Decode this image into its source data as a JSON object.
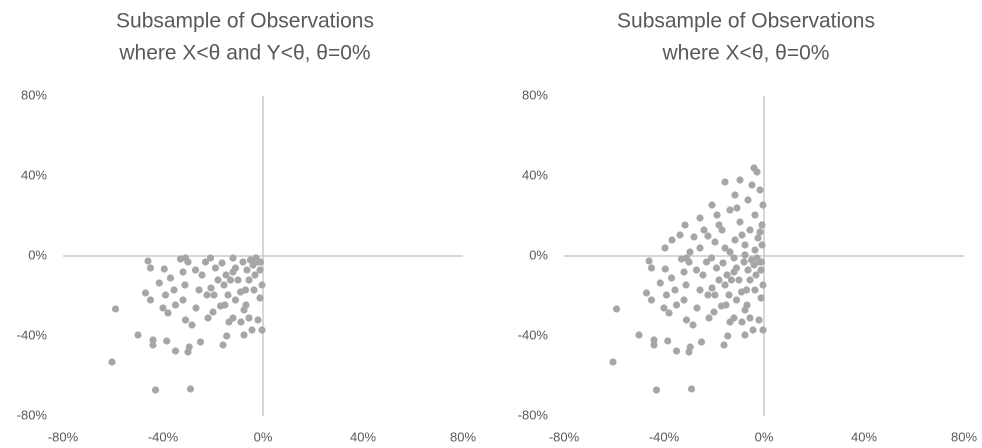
{
  "chart_data": [
    {
      "type": "scatter",
      "title": [
        "Subsample of Observations",
        "where X<θ and Y<θ, θ=0%"
      ],
      "color": "#a6a6a6",
      "xlim": [
        -80,
        80
      ],
      "ylim": [
        -80,
        80
      ],
      "xticks": [
        {
          "value": -80,
          "label": "-80%"
        },
        {
          "value": -40,
          "label": "-40%"
        },
        {
          "value": 0,
          "label": "0%"
        },
        {
          "value": 40,
          "label": "40%"
        },
        {
          "value": 80,
          "label": "80%"
        }
      ],
      "yticks": [
        {
          "value": -80,
          "label": "-80%"
        },
        {
          "value": -40,
          "label": "-40%"
        },
        {
          "value": 0,
          "label": "0%"
        },
        {
          "value": 40,
          "label": "40%"
        },
        {
          "value": 80,
          "label": "80%"
        }
      ],
      "x": [
        -60.4,
        -59,
        -43,
        -29,
        -46,
        -45,
        -47,
        -45,
        -50,
        -44,
        -44,
        -38.5,
        -35,
        -30,
        -29.5,
        -25,
        -16,
        -14.5,
        -38,
        -39,
        -41.5,
        -37,
        -39.5,
        -33,
        -31,
        -30,
        -32,
        -31.2,
        -32,
        -35,
        -31,
        -28.4,
        -26.8,
        -25.6,
        -24.4,
        -23,
        -21,
        -19,
        -18,
        -19.6,
        -17,
        -22,
        -13.6,
        -12,
        -11,
        -9,
        -10,
        -11,
        -12,
        -8,
        -6.4,
        -5,
        -4,
        -2.8,
        -2,
        -1.2,
        -0.4,
        -1.2,
        -2,
        -0.4,
        -4.4,
        -5.6,
        -6.8,
        -7.6,
        -8.8,
        -15.2,
        -14,
        -15.6,
        -14.8,
        -16.4,
        -13,
        -20.8,
        -22.4,
        -27,
        -35.6,
        -40,
        -12,
        -5.6,
        -3.6,
        -7,
        -3.2,
        -1,
        -20,
        -7.6
      ],
      "y": [
        -53,
        -26.5,
        -67,
        -66.5,
        -2.5,
        -6,
        -18.5,
        -22,
        -39.5,
        -42,
        -44.5,
        -42.5,
        -47.5,
        -48,
        -45.5,
        -43,
        -44.5,
        -40,
        -28.5,
        -19.5,
        -13.5,
        -11,
        -6.5,
        -1.5,
        -1,
        -3,
        -8,
        -14.5,
        -22,
        -24.5,
        -32,
        -34.5,
        -26,
        -17,
        -9.5,
        -3,
        -1,
        -6,
        -12,
        -19.5,
        -25,
        -31,
        -33,
        -31,
        -22,
        -18,
        -12,
        -6,
        -1,
        -3,
        -7,
        -2,
        -4.5,
        -1,
        -3,
        -7,
        -14.5,
        -21,
        -32,
        -37,
        -37,
        -31,
        -24.5,
        -27,
        -33,
        -24.5,
        -19.5,
        -14.5,
        -9.5,
        -3.5,
        -12,
        -16,
        -19.5,
        -7,
        -17,
        -26,
        -8,
        -12,
        -17,
        -17,
        -9.5,
        -3,
        -28,
        -39.5
      ]
    },
    {
      "type": "scatter",
      "title": [
        "Subsample of Observations",
        "where X<θ, θ=0%"
      ],
      "color": "#a6a6a6",
      "xlim": [
        -80,
        80
      ],
      "ylim": [
        -80,
        80
      ],
      "xticks": [
        {
          "value": -80,
          "label": "-80%"
        },
        {
          "value": -40,
          "label": "-40%"
        },
        {
          "value": 0,
          "label": "0%"
        },
        {
          "value": 40,
          "label": "40%"
        },
        {
          "value": 80,
          "label": "80%"
        }
      ],
      "yticks": [
        {
          "value": -80,
          "label": "-80%"
        },
        {
          "value": -40,
          "label": "-40%"
        },
        {
          "value": 0,
          "label": "0%"
        },
        {
          "value": 40,
          "label": "40%"
        },
        {
          "value": 80,
          "label": "80%"
        }
      ],
      "x": [
        -60.4,
        -59,
        -43,
        -29,
        -46,
        -45,
        -47,
        -45,
        -50,
        -44,
        -44,
        -38.5,
        -35,
        -30,
        -29.5,
        -25,
        -16,
        -14.5,
        -38,
        -39,
        -41.5,
        -37,
        -39.5,
        -33,
        -31,
        -30,
        -32,
        -31.2,
        -32,
        -35,
        -31,
        -28.4,
        -26.8,
        -25.6,
        -24.4,
        -23,
        -21,
        -19,
        -18,
        -19.6,
        -17,
        -22,
        -13.6,
        -12,
        -11,
        -9,
        -10,
        -11,
        -12,
        -8,
        -6.4,
        -5,
        -4,
        -2.8,
        -2,
        -1.2,
        -0.4,
        -1.2,
        -2,
        -0.4,
        -4.4,
        -5.6,
        -6.8,
        -7.6,
        -8.8,
        -15.2,
        -14,
        -15.6,
        -14.8,
        -16.4,
        -13,
        -20.8,
        -22.4,
        -27,
        -35.6,
        -40,
        -12,
        -5.6,
        -3.6,
        -7,
        -3.2,
        -1,
        -20,
        -7.6,
        -4,
        -9.6,
        -15.6,
        -1.6,
        -6.4,
        -20.8,
        -13.6,
        -3.6,
        -0.8,
        -25.6,
        -31.6,
        -33.6,
        -39.6,
        -36.8,
        -28,
        -24,
        -18,
        -9.6,
        -5.6,
        -2.4,
        -0.8,
        -11.6,
        -19.6,
        -25.6,
        -29.6,
        -15.6,
        -7.6,
        -3.6,
        -0.4,
        -4.8,
        -11.6,
        -16.8,
        -22.4,
        -8.8,
        -1.6,
        -7.6,
        -13.6,
        -10.8,
        -18.8,
        -2.8
      ],
      "y": [
        -53,
        -26.5,
        -67,
        -66.5,
        -2.5,
        -6,
        -18.5,
        -22,
        -39.5,
        -42,
        -44.5,
        -42.5,
        -47.5,
        -48,
        -45.5,
        -43,
        -44.5,
        -40,
        -28.5,
        -19.5,
        -13.5,
        -11,
        -6.5,
        -1.5,
        -1,
        -3,
        -8,
        -14.5,
        -22,
        -24.5,
        -32,
        -34.5,
        -26,
        -17,
        -9.5,
        -3,
        -1,
        -6,
        -12,
        -19.5,
        -25,
        -31,
        -33,
        -31,
        -22,
        -18,
        -12,
        -6,
        -1,
        -3,
        -7,
        -2,
        -4.5,
        -1,
        -3,
        -7,
        -14.5,
        -21,
        -32,
        -37,
        -37,
        -31,
        -24.5,
        -27,
        -33,
        -24.5,
        -19.5,
        -14.5,
        -9.5,
        -3.5,
        -12,
        -16,
        -19.5,
        -7,
        -17,
        -26,
        -8,
        -12,
        -17,
        -17,
        -9.5,
        -3,
        -28,
        -39.5,
        44,
        38,
        37,
        33,
        28,
        25.5,
        23,
        20.5,
        15.5,
        19,
        15.5,
        10.5,
        4,
        8,
        9.5,
        13,
        15.5,
        17,
        13,
        9,
        5.5,
        8,
        7,
        4,
        2,
        4,
        5.5,
        3,
        25.5,
        35.5,
        30.5,
        13,
        10,
        10.5,
        12,
        0.5,
        2,
        24,
        20.5,
        42
      ]
    }
  ]
}
